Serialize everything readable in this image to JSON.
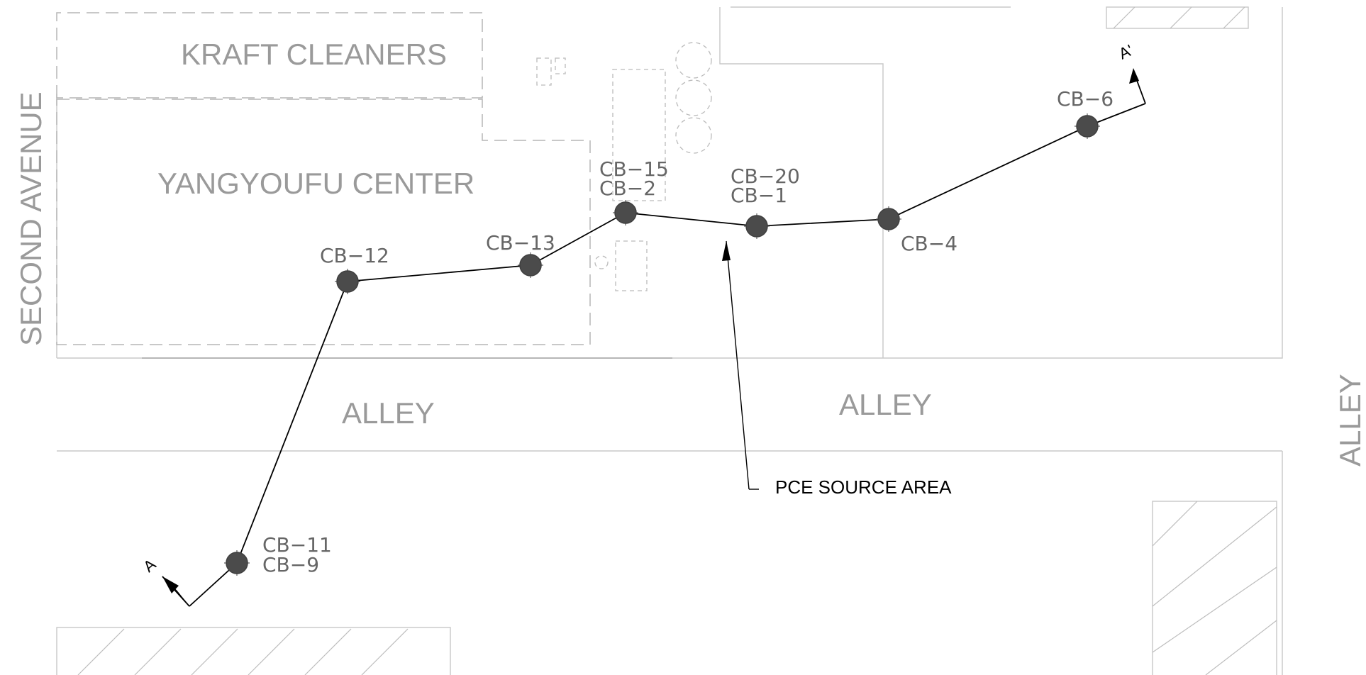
{
  "map": {
    "streets": {
      "second_avenue": "SECOND AVENUE",
      "alley_west": "ALLEY",
      "alley_east": "ALLEY",
      "alley_right": "ALLEY"
    },
    "buildings": {
      "kraft_cleaners": "KRAFT CLEANERS",
      "yangyoufu_center": "YANGYOUFU CENTER"
    },
    "callout": {
      "pce_source_area": "PCE SOURCE AREA"
    },
    "section": {
      "start_label": "A",
      "end_label": "A'"
    },
    "borings": {
      "cb11_cb9": {
        "line1": "CB−11",
        "line2": "CB−9"
      },
      "cb12": {
        "line1": "CB−12"
      },
      "cb13": {
        "line1": "CB−13"
      },
      "cb15_cb2": {
        "line1": "CB−15",
        "line2": "CB−2"
      },
      "cb20_cb1": {
        "line1": "CB−20",
        "line2": "CB−1"
      },
      "cb4": {
        "line1": "CB−4"
      },
      "cb6": {
        "line1": "CB−6"
      }
    },
    "icons": {
      "boring": "boring-location-icon",
      "arrow": "section-arrow-icon"
    },
    "colors": {
      "linework": "#c8c8c8",
      "labels": "#9a9a9a",
      "boring": "#4b4b4b",
      "section_line": "#000000"
    }
  }
}
